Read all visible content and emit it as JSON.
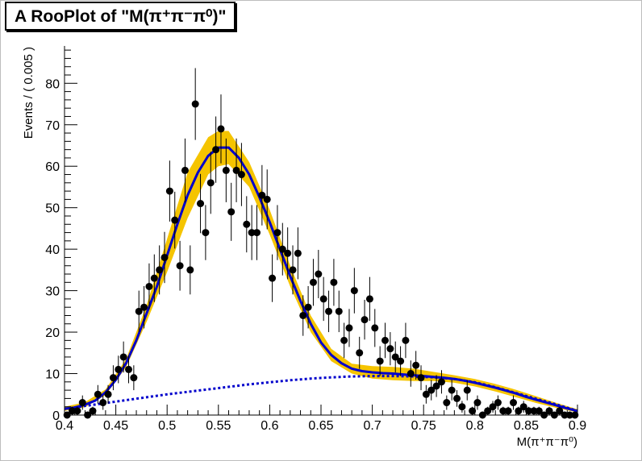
{
  "canvas": {
    "background": "#ffffff",
    "frame_color": "#bdbdbd"
  },
  "chart_data": {
    "type": "scatter",
    "title": "A RooPlot of \"M(π⁺π⁻π⁰)\"",
    "xlabel": "M(π⁺π⁻π⁰)",
    "ylabel": "Events / ( 0.005 )",
    "xlim": [
      0.4,
      0.9
    ],
    "ylim": [
      0,
      89
    ],
    "grid": false,
    "legend": "none",
    "xticks": [
      0.4,
      0.45,
      0.5,
      0.55,
      0.6,
      0.65,
      0.7,
      0.75,
      0.8,
      0.85,
      0.9
    ],
    "xtick_labels": [
      "0.4",
      "0.45",
      "0.5",
      "0.55",
      "0.6",
      "0.65",
      "0.7",
      "0.75",
      "0.8",
      "0.85",
      "0.9"
    ],
    "yticks": [
      0,
      10,
      20,
      30,
      40,
      50,
      60,
      70,
      80
    ],
    "ytick_labels": [
      "0",
      "10",
      "20",
      "30",
      "40",
      "50",
      "60",
      "70",
      "80"
    ],
    "colors": {
      "data": "#000000",
      "fit": "#0000cc",
      "background": "#0000cc",
      "band": "#f5c400"
    },
    "series": [
      {
        "style": "points-with-errors",
        "points": [
          [
            0.4025,
            0
          ],
          [
            0.4075,
            1
          ],
          [
            0.4125,
            1
          ],
          [
            0.4175,
            3
          ],
          [
            0.4225,
            0
          ],
          [
            0.4275,
            1
          ],
          [
            0.4325,
            5
          ],
          [
            0.4375,
            3
          ],
          [
            0.4425,
            5
          ],
          [
            0.4475,
            9
          ],
          [
            0.4525,
            11
          ],
          [
            0.4575,
            14
          ],
          [
            0.4625,
            11
          ],
          [
            0.4675,
            9
          ],
          [
            0.4725,
            25
          ],
          [
            0.4775,
            26
          ],
          [
            0.4825,
            31
          ],
          [
            0.4875,
            33
          ],
          [
            0.4925,
            35
          ],
          [
            0.4975,
            38
          ],
          [
            0.5025,
            54
          ],
          [
            0.5075,
            47
          ],
          [
            0.5125,
            36
          ],
          [
            0.5175,
            59
          ],
          [
            0.5225,
            35
          ],
          [
            0.5275,
            75
          ],
          [
            0.5325,
            51
          ],
          [
            0.5375,
            44
          ],
          [
            0.5425,
            56
          ],
          [
            0.5475,
            64
          ],
          [
            0.5525,
            69
          ],
          [
            0.5575,
            59
          ],
          [
            0.5625,
            49
          ],
          [
            0.5675,
            59
          ],
          [
            0.5725,
            58
          ],
          [
            0.5775,
            46
          ],
          [
            0.5825,
            44
          ],
          [
            0.5875,
            44
          ],
          [
            0.5925,
            53
          ],
          [
            0.5975,
            52
          ],
          [
            0.6025,
            33
          ],
          [
            0.6075,
            44
          ],
          [
            0.6125,
            40
          ],
          [
            0.6175,
            39
          ],
          [
            0.6225,
            35
          ],
          [
            0.6275,
            39
          ],
          [
            0.6325,
            24
          ],
          [
            0.6375,
            26
          ],
          [
            0.6425,
            32
          ],
          [
            0.6475,
            34
          ],
          [
            0.6525,
            28
          ],
          [
            0.6575,
            25
          ],
          [
            0.6625,
            32
          ],
          [
            0.6675,
            25
          ],
          [
            0.6725,
            18
          ],
          [
            0.6775,
            21
          ],
          [
            0.6825,
            30
          ],
          [
            0.6875,
            15
          ],
          [
            0.6925,
            23
          ],
          [
            0.6975,
            28
          ],
          [
            0.7025,
            21
          ],
          [
            0.7075,
            13
          ],
          [
            0.7125,
            18
          ],
          [
            0.7175,
            16
          ],
          [
            0.7225,
            14
          ],
          [
            0.7275,
            13
          ],
          [
            0.7325,
            18
          ],
          [
            0.7375,
            10
          ],
          [
            0.7425,
            12
          ],
          [
            0.7475,
            9
          ],
          [
            0.7525,
            5
          ],
          [
            0.7575,
            6
          ],
          [
            0.7625,
            7
          ],
          [
            0.7675,
            8
          ],
          [
            0.7725,
            3
          ],
          [
            0.7775,
            6
          ],
          [
            0.7825,
            4
          ],
          [
            0.7875,
            2
          ],
          [
            0.7925,
            6
          ],
          [
            0.7975,
            1
          ],
          [
            0.8025,
            3
          ],
          [
            0.8075,
            0
          ],
          [
            0.8125,
            1
          ],
          [
            0.8175,
            2
          ],
          [
            0.8225,
            3
          ],
          [
            0.8275,
            1
          ],
          [
            0.8325,
            1
          ],
          [
            0.8375,
            3
          ],
          [
            0.8425,
            1
          ],
          [
            0.8475,
            2
          ],
          [
            0.8525,
            1
          ],
          [
            0.8575,
            1
          ],
          [
            0.8625,
            1
          ],
          [
            0.8675,
            0
          ],
          [
            0.8725,
            1
          ],
          [
            0.8775,
            0
          ],
          [
            0.8825,
            1
          ],
          [
            0.8875,
            0
          ],
          [
            0.8925,
            0
          ],
          [
            0.8975,
            0
          ]
        ]
      },
      {
        "style": "line-solid",
        "points": [
          [
            0.4,
            1.5
          ],
          [
            0.41,
            1.8
          ],
          [
            0.42,
            2.5
          ],
          [
            0.43,
            3.5
          ],
          [
            0.44,
            5.5
          ],
          [
            0.45,
            8.5
          ],
          [
            0.46,
            12.5
          ],
          [
            0.47,
            18
          ],
          [
            0.48,
            24.5
          ],
          [
            0.49,
            31
          ],
          [
            0.5,
            38.5
          ],
          [
            0.51,
            46
          ],
          [
            0.52,
            53
          ],
          [
            0.53,
            58.5
          ],
          [
            0.54,
            62.5
          ],
          [
            0.55,
            64.5
          ],
          [
            0.56,
            64.5
          ],
          [
            0.57,
            62
          ],
          [
            0.58,
            58
          ],
          [
            0.59,
            52.5
          ],
          [
            0.6,
            46.5
          ],
          [
            0.61,
            40
          ],
          [
            0.62,
            33.5
          ],
          [
            0.63,
            27.5
          ],
          [
            0.64,
            22
          ],
          [
            0.65,
            17.5
          ],
          [
            0.66,
            14.5
          ],
          [
            0.67,
            12.5
          ],
          [
            0.68,
            11.2
          ],
          [
            0.69,
            10.6
          ],
          [
            0.7,
            10.3
          ],
          [
            0.71,
            10.1
          ],
          [
            0.72,
            10
          ],
          [
            0.73,
            9.8
          ],
          [
            0.74,
            9.6
          ],
          [
            0.75,
            9.4
          ],
          [
            0.76,
            9.2
          ],
          [
            0.77,
            9
          ],
          [
            0.78,
            8.7
          ],
          [
            0.79,
            8.3
          ],
          [
            0.8,
            7.8
          ],
          [
            0.81,
            7.2
          ],
          [
            0.82,
            6.6
          ],
          [
            0.83,
            5.9
          ],
          [
            0.84,
            5.2
          ],
          [
            0.85,
            4.4
          ],
          [
            0.86,
            3.7
          ],
          [
            0.87,
            3
          ],
          [
            0.88,
            2.3
          ],
          [
            0.89,
            1.6
          ],
          [
            0.9,
            1
          ]
        ]
      },
      {
        "style": "line-dotted",
        "points": [
          [
            0.4,
            1.5
          ],
          [
            0.42,
            2.2
          ],
          [
            0.44,
            2.9
          ],
          [
            0.46,
            3.6
          ],
          [
            0.48,
            4.3
          ],
          [
            0.5,
            5
          ],
          [
            0.52,
            5.6
          ],
          [
            0.54,
            6.2
          ],
          [
            0.56,
            6.8
          ],
          [
            0.58,
            7.4
          ],
          [
            0.6,
            7.9
          ],
          [
            0.62,
            8.4
          ],
          [
            0.64,
            8.8
          ],
          [
            0.66,
            9.1
          ],
          [
            0.68,
            9.3
          ],
          [
            0.7,
            9.4
          ],
          [
            0.72,
            9.4
          ],
          [
            0.74,
            9.3
          ],
          [
            0.76,
            9.1
          ],
          [
            0.78,
            8.7
          ],
          [
            0.8,
            7.9
          ],
          [
            0.82,
            6.7
          ],
          [
            0.84,
            5.3
          ],
          [
            0.86,
            3.9
          ],
          [
            0.88,
            2.5
          ],
          [
            0.9,
            1
          ]
        ]
      }
    ],
    "error_band": {
      "x": [
        0.4,
        0.42,
        0.44,
        0.46,
        0.48,
        0.5,
        0.52,
        0.54,
        0.55,
        0.56,
        0.58,
        0.6,
        0.62,
        0.64,
        0.66,
        0.68,
        0.7,
        0.72,
        0.74,
        0.76,
        0.78,
        0.8,
        0.82,
        0.84,
        0.86,
        0.88,
        0.9
      ],
      "lower": [
        1,
        1.9,
        4.8,
        11.5,
        22.5,
        34.5,
        47.5,
        58,
        60,
        60.5,
        55,
        43.5,
        31,
        20,
        13,
        10,
        8.8,
        8.4,
        8.2,
        8.2,
        7.8,
        6.9,
        5.7,
        4.3,
        2.9,
        1.7,
        0.6
      ],
      "upper": [
        2,
        3.1,
        6.2,
        13.5,
        26.5,
        42.5,
        58.5,
        67,
        68.5,
        68.5,
        61,
        49.5,
        36,
        24,
        16,
        12.4,
        11.8,
        11.6,
        11.2,
        10.4,
        9.6,
        8.7,
        7.5,
        6.1,
        4.5,
        2.9,
        1.4
      ]
    }
  }
}
